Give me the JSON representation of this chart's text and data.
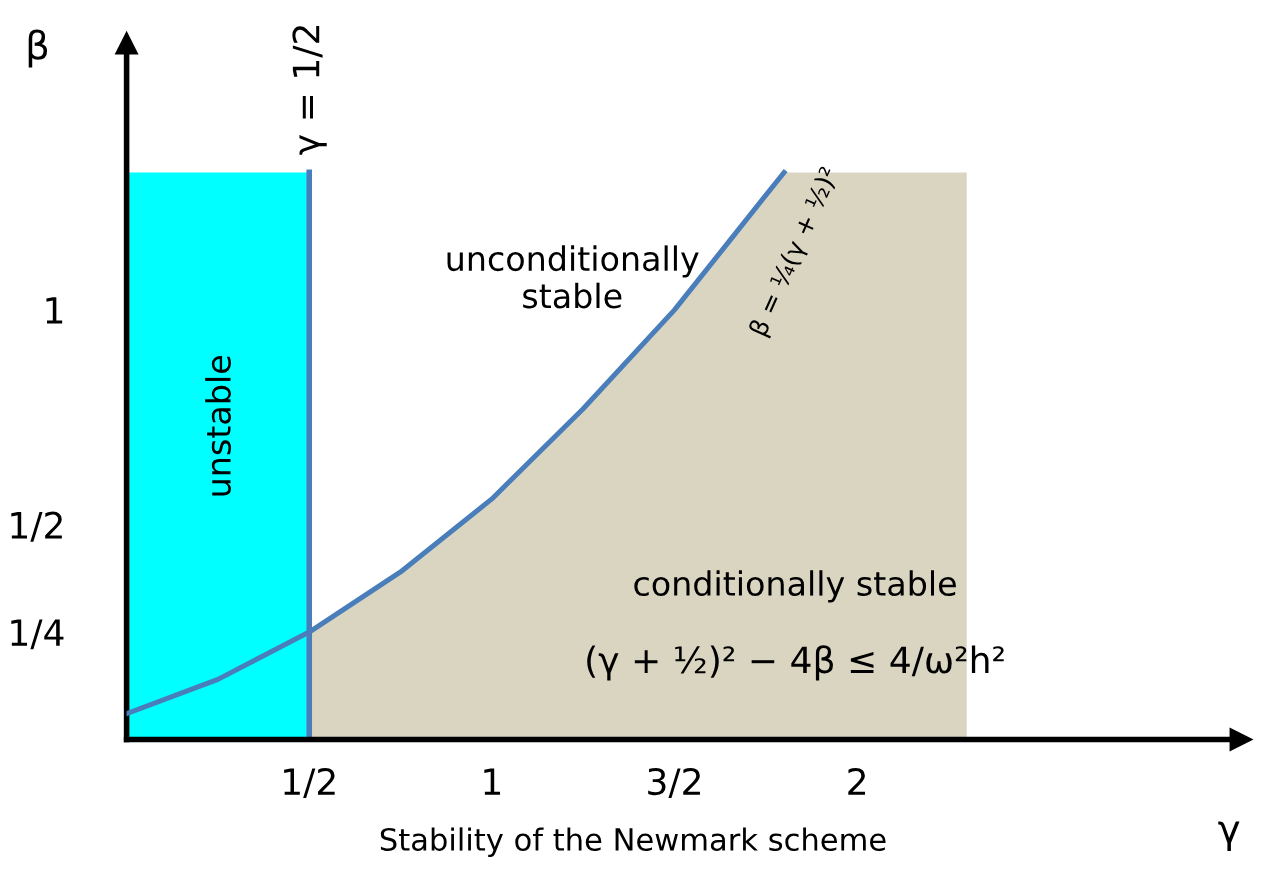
{
  "chart_data": {
    "type": "line",
    "xlabel": "γ",
    "ylabel": "β",
    "xlim": [
      0,
      3.05
    ],
    "ylim": [
      0,
      1.62
    ],
    "xticks": [
      {
        "value": 0.5,
        "label": "1/2"
      },
      1,
      {
        "value": 1.5,
        "label": "3/2"
      },
      2
    ],
    "yticks": [
      {
        "value": 0.25,
        "label": "1/4"
      },
      {
        "value": 0.5,
        "label": "1/2"
      },
      1
    ],
    "grid": false,
    "legend": false,
    "marker": "none",
    "line_style": "solid",
    "series": [
      {
        "type": "area",
        "color": "#00ffff",
        "x": [
          0,
          0.5
        ],
        "values": [
          1.32,
          1.32
        ]
      },
      {
        "type": "area",
        "color": "#d9d5c1",
        "x": [
          0.5,
          0.75,
          1,
          1.25,
          1.5,
          1.65,
          1.8,
          2.3
        ],
        "values": [
          0.25,
          0.39,
          0.56,
          0.77,
          1.0,
          1.16,
          1.32,
          1.32
        ]
      },
      {
        "color": "#4a7ebb",
        "x": [
          0,
          0.25,
          0.5,
          0.75,
          1,
          1.25,
          1.5,
          1.65,
          1.8
        ],
        "values": [
          0.06,
          0.14,
          0.25,
          0.39,
          0.56,
          0.77,
          1.0,
          1.16,
          1.32
        ]
      }
    ],
    "ref_lines": [
      {
        "axis": "x",
        "value": 0.5,
        "label": "γ = 1/2",
        "color": "#4a7ebb",
        "line_style": "solid"
      }
    ],
    "annotations": [
      "unstable",
      "unconditionally stable",
      "conditionally stable",
      "(γ + ½)² − 4β ≤ 4/ω²h²",
      "β = ¼(γ + ½)²",
      "Stability of the Newmark scheme"
    ]
  }
}
